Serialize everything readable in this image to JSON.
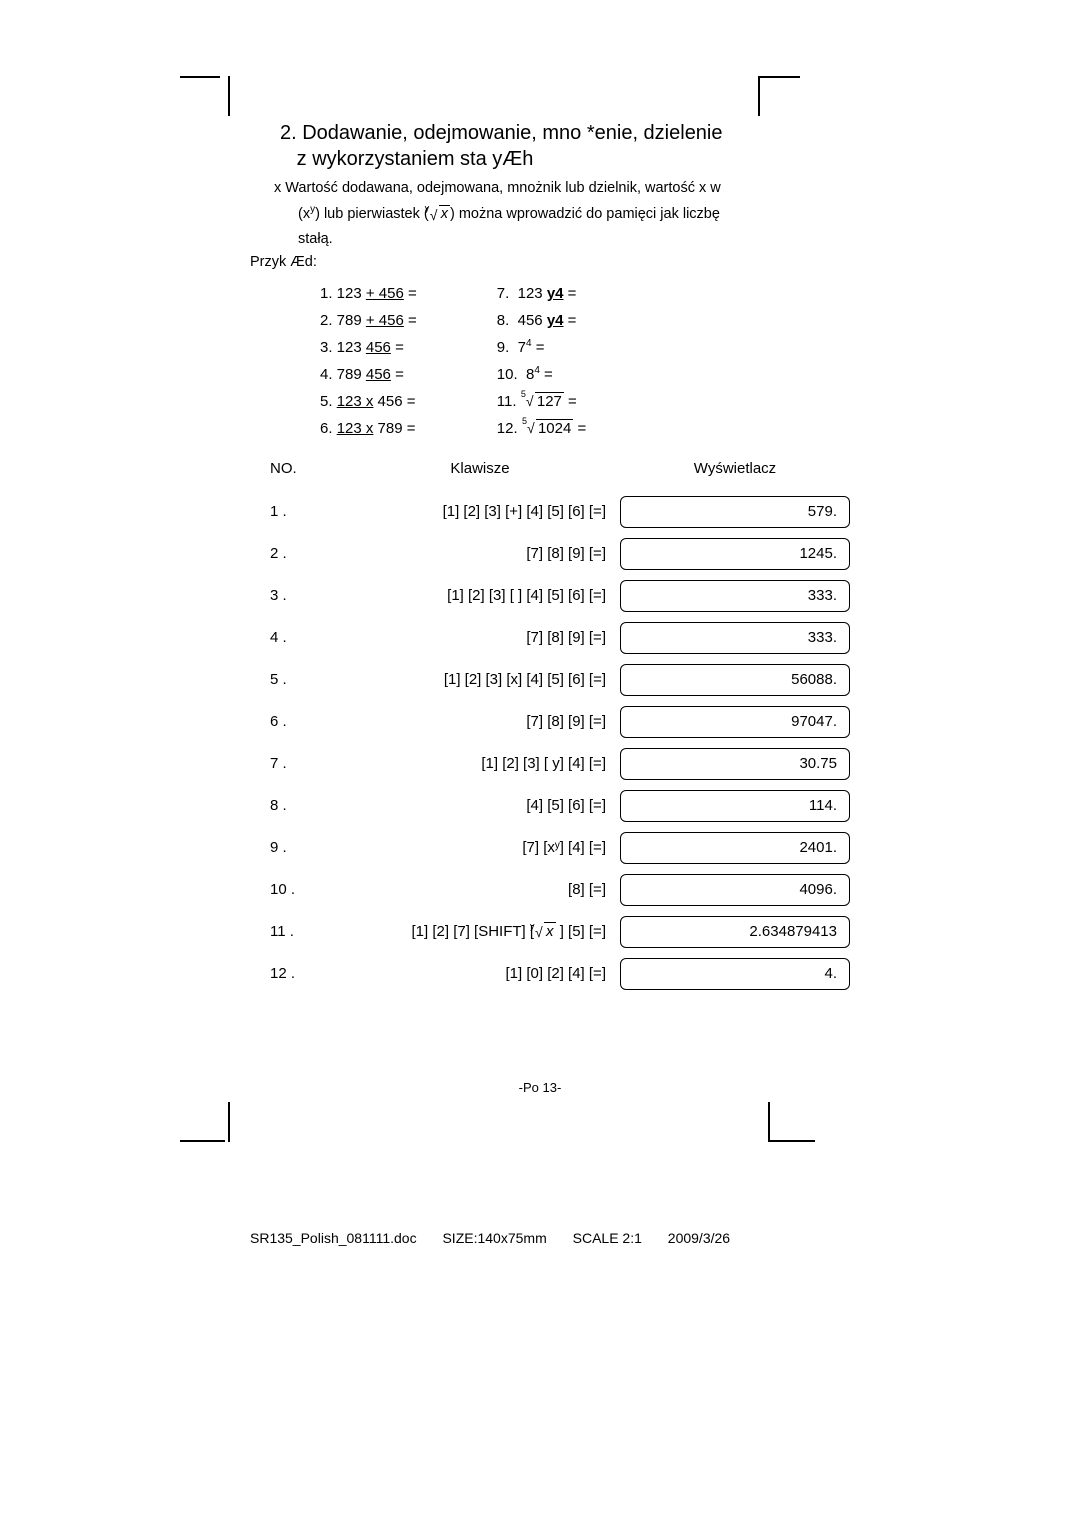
{
  "title_line1": "2. Dodawanie, odejmowanie, mno    *enie, dzielenie",
  "title_line2": "z wykorzystaniem sta   yÆh",
  "note_line1": "x Wartość dodawana, odejmowana, mnożnik lub dzielnik, wartość x w",
  "note_line2_a": "(x",
  "note_line2_b": ") lub pierwiastek (",
  "note_line2_c": ") można wprowadzić do pamięci jak liczbę",
  "note_line3": "stałą.",
  "example_label": "Przyk Æd:",
  "examples_left": [
    {
      "n": "1.",
      "pre": "123 ",
      "op": "+ 456",
      "post": " ="
    },
    {
      "n": "2.",
      "pre": "789 ",
      "op": "+ 456",
      "post": " ="
    },
    {
      "n": "3.",
      "pre": "123  ",
      "op": "456",
      "post": "  ="
    },
    {
      "n": "4.",
      "pre": "789  ",
      "op": "456",
      "post": "  ="
    },
    {
      "n": "5.",
      "pre": "",
      "op": "123 x",
      "post": " 456 ="
    },
    {
      "n": "6.",
      "pre": "",
      "op": "123 x",
      "post": " 789 ="
    }
  ],
  "examples_right": [
    {
      "n": "7.",
      "pre": "123 ",
      "op": "y4",
      "post": " ="
    },
    {
      "n": "8.",
      "pre": "456 ",
      "op": "y4",
      "post": " ="
    },
    {
      "n": "9.",
      "pre": "7",
      "sup": "4",
      "post": " ="
    },
    {
      "n": "10.",
      "pre": "8",
      "sup": "4",
      "post": " ="
    },
    {
      "n": "11.",
      "root_deg": "5",
      "root_rad": "127",
      "post": "  ="
    },
    {
      "n": "12.",
      "root_deg": "5",
      "root_rad": "1024",
      "post": "  ="
    }
  ],
  "table": {
    "head_no": "NO.",
    "head_keys": "Klawisze",
    "head_disp": "Wyświetlacz",
    "rows": [
      {
        "no": "1 .",
        "keys": "[1] [2] [3] [+] [4] [5] [6] [=]",
        "disp": "579."
      },
      {
        "no": "2 .",
        "keys": "[7] [8] [9] [=]",
        "disp": "1245."
      },
      {
        "no": "3 .",
        "keys": "[1] [2] [3] [ ] [4] [5] [6] [=]",
        "disp": "333."
      },
      {
        "no": "4 .",
        "keys": "[7] [8] [9] [=]",
        "disp": "333."
      },
      {
        "no": "5 .",
        "keys": "[1] [2] [3] [x] [4] [5] [6] [=]",
        "disp": "56088."
      },
      {
        "no": "6 .",
        "keys": "[7] [8] [9] [=]",
        "disp": "97047."
      },
      {
        "no": "7 .",
        "keys": "[1] [2] [3] [ y] [4] [=]",
        "disp": "30.75"
      },
      {
        "no": "8 .",
        "keys": "[4] [5] [6] [=]",
        "disp": "114."
      },
      {
        "no": "9 .",
        "keys": "[7] [xʸ] [4] [=]",
        "disp": "2401."
      },
      {
        "no": "10 .",
        "keys": "[8] [=]",
        "disp": "4096."
      },
      {
        "no": "11 .",
        "keys_special": "root",
        "keys_pre": "[1] [2] [7] [SHIFT] [",
        "keys_post": " ] [5] [=]",
        "disp": "2.634879413"
      },
      {
        "no": "12 .",
        "keys": "[1] [0] [2] [4] [=]",
        "disp": "4."
      }
    ]
  },
  "page_num": "-Po 13-",
  "footer": {
    "file": "SR135_Polish_081111.doc",
    "size": "SIZE:140x75mm",
    "scale": "SCALE 2:1",
    "date": "2009/3/26"
  },
  "colors": {
    "bg": "#ffffff",
    "text": "#000000",
    "border": "#000000"
  }
}
